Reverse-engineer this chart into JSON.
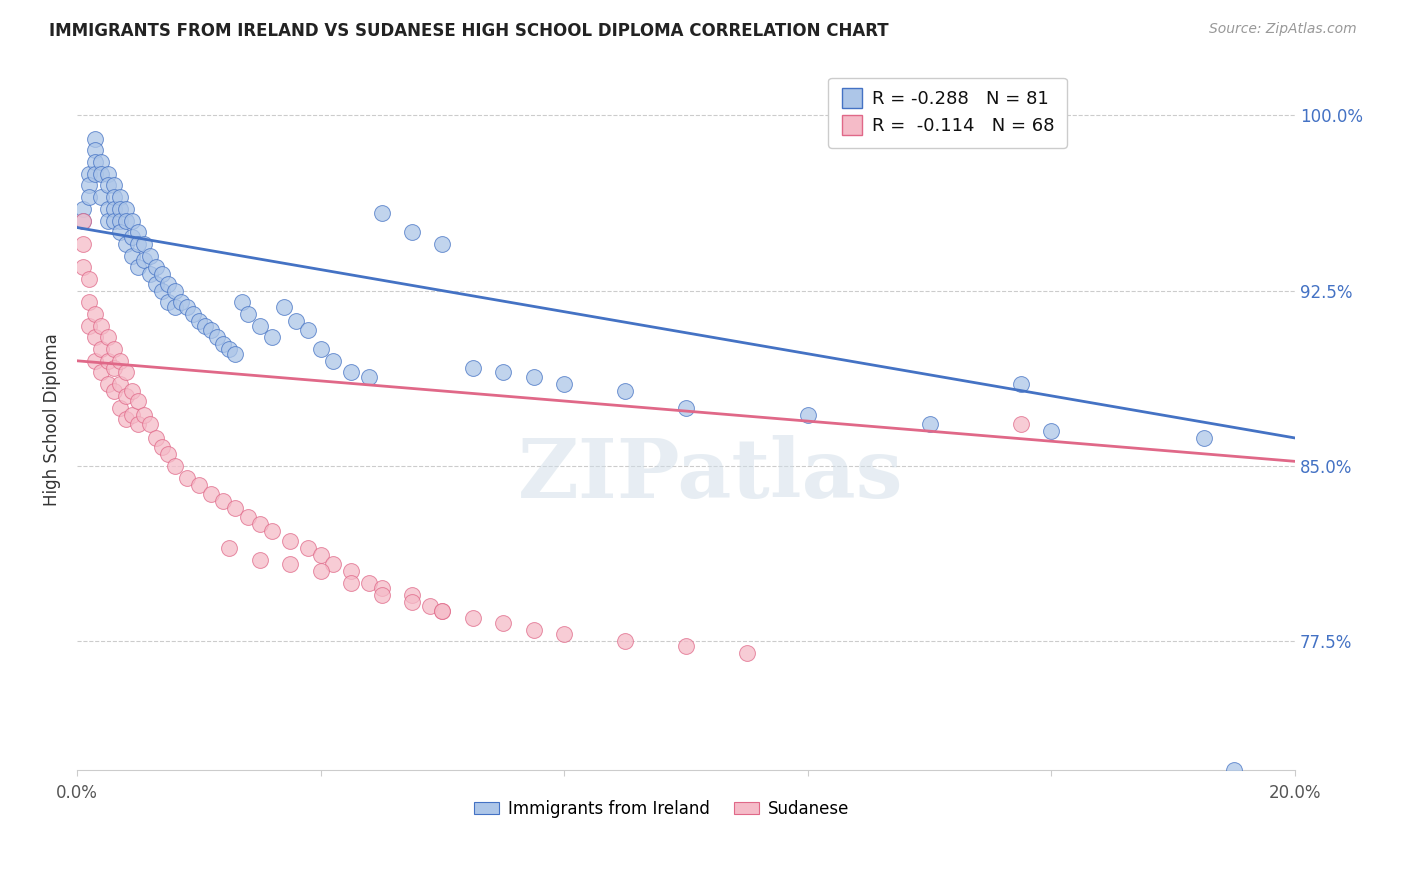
{
  "title": "IMMIGRANTS FROM IRELAND VS SUDANESE HIGH SCHOOL DIPLOMA CORRELATION CHART",
  "source": "Source: ZipAtlas.com",
  "ylabel": "High School Diploma",
  "xlim": [
    0.0,
    0.2
  ],
  "ylim": [
    0.72,
    1.02
  ],
  "xtick_positions": [
    0.0,
    0.04,
    0.08,
    0.12,
    0.16,
    0.2
  ],
  "xticklabels": [
    "0.0%",
    "",
    "",
    "",
    "",
    "20.0%"
  ],
  "ytick_positions": [
    0.775,
    0.85,
    0.925,
    1.0
  ],
  "yticklabels": [
    "77.5%",
    "85.0%",
    "92.5%",
    "100.0%"
  ],
  "legend_blue_label": "Immigrants from Ireland",
  "legend_pink_label": "Sudanese",
  "blue_R": "-0.288",
  "blue_N": "81",
  "pink_R": "-0.114",
  "pink_N": "68",
  "blue_color": "#adc6e8",
  "pink_color": "#f5bbc8",
  "blue_line_color": "#4472c4",
  "pink_line_color": "#e06888",
  "watermark": "ZIPatlas",
  "blue_line_x": [
    0.0,
    0.2
  ],
  "blue_line_y": [
    0.952,
    0.862
  ],
  "pink_line_x": [
    0.0,
    0.2
  ],
  "pink_line_y": [
    0.895,
    0.852
  ],
  "blue_scatter_x": [
    0.001,
    0.001,
    0.002,
    0.002,
    0.002,
    0.003,
    0.003,
    0.003,
    0.003,
    0.004,
    0.004,
    0.004,
    0.005,
    0.005,
    0.005,
    0.005,
    0.006,
    0.006,
    0.006,
    0.006,
    0.007,
    0.007,
    0.007,
    0.007,
    0.008,
    0.008,
    0.008,
    0.009,
    0.009,
    0.009,
    0.01,
    0.01,
    0.01,
    0.011,
    0.011,
    0.012,
    0.012,
    0.013,
    0.013,
    0.014,
    0.014,
    0.015,
    0.015,
    0.016,
    0.016,
    0.017,
    0.018,
    0.019,
    0.02,
    0.021,
    0.022,
    0.023,
    0.024,
    0.025,
    0.026,
    0.027,
    0.028,
    0.03,
    0.032,
    0.034,
    0.036,
    0.038,
    0.04,
    0.042,
    0.045,
    0.048,
    0.05,
    0.055,
    0.06,
    0.065,
    0.07,
    0.075,
    0.08,
    0.09,
    0.1,
    0.12,
    0.14,
    0.155,
    0.16,
    0.185,
    0.19
  ],
  "blue_scatter_y": [
    0.96,
    0.955,
    0.975,
    0.97,
    0.965,
    0.99,
    0.985,
    0.98,
    0.975,
    0.98,
    0.975,
    0.965,
    0.975,
    0.97,
    0.96,
    0.955,
    0.97,
    0.965,
    0.96,
    0.955,
    0.965,
    0.96,
    0.955,
    0.95,
    0.96,
    0.955,
    0.945,
    0.955,
    0.948,
    0.94,
    0.95,
    0.945,
    0.935,
    0.945,
    0.938,
    0.94,
    0.932,
    0.935,
    0.928,
    0.932,
    0.925,
    0.928,
    0.92,
    0.925,
    0.918,
    0.92,
    0.918,
    0.915,
    0.912,
    0.91,
    0.908,
    0.905,
    0.902,
    0.9,
    0.898,
    0.92,
    0.915,
    0.91,
    0.905,
    0.918,
    0.912,
    0.908,
    0.9,
    0.895,
    0.89,
    0.888,
    0.958,
    0.95,
    0.945,
    0.892,
    0.89,
    0.888,
    0.885,
    0.882,
    0.875,
    0.872,
    0.868,
    0.885,
    0.865,
    0.862,
    0.72
  ],
  "pink_scatter_x": [
    0.001,
    0.001,
    0.001,
    0.002,
    0.002,
    0.002,
    0.003,
    0.003,
    0.003,
    0.004,
    0.004,
    0.004,
    0.005,
    0.005,
    0.005,
    0.006,
    0.006,
    0.006,
    0.007,
    0.007,
    0.007,
    0.008,
    0.008,
    0.008,
    0.009,
    0.009,
    0.01,
    0.01,
    0.011,
    0.012,
    0.013,
    0.014,
    0.015,
    0.016,
    0.018,
    0.02,
    0.022,
    0.024,
    0.026,
    0.028,
    0.03,
    0.032,
    0.035,
    0.038,
    0.04,
    0.042,
    0.045,
    0.048,
    0.05,
    0.055,
    0.058,
    0.06,
    0.065,
    0.07,
    0.075,
    0.08,
    0.09,
    0.1,
    0.11,
    0.155,
    0.025,
    0.03,
    0.035,
    0.04,
    0.045,
    0.05,
    0.055,
    0.06
  ],
  "pink_scatter_y": [
    0.955,
    0.945,
    0.935,
    0.93,
    0.92,
    0.91,
    0.915,
    0.905,
    0.895,
    0.91,
    0.9,
    0.89,
    0.905,
    0.895,
    0.885,
    0.9,
    0.892,
    0.882,
    0.895,
    0.885,
    0.875,
    0.89,
    0.88,
    0.87,
    0.882,
    0.872,
    0.878,
    0.868,
    0.872,
    0.868,
    0.862,
    0.858,
    0.855,
    0.85,
    0.845,
    0.842,
    0.838,
    0.835,
    0.832,
    0.828,
    0.825,
    0.822,
    0.818,
    0.815,
    0.812,
    0.808,
    0.805,
    0.8,
    0.798,
    0.795,
    0.79,
    0.788,
    0.785,
    0.783,
    0.78,
    0.778,
    0.775,
    0.773,
    0.77,
    0.868,
    0.815,
    0.81,
    0.808,
    0.805,
    0.8,
    0.795,
    0.792,
    0.788
  ]
}
